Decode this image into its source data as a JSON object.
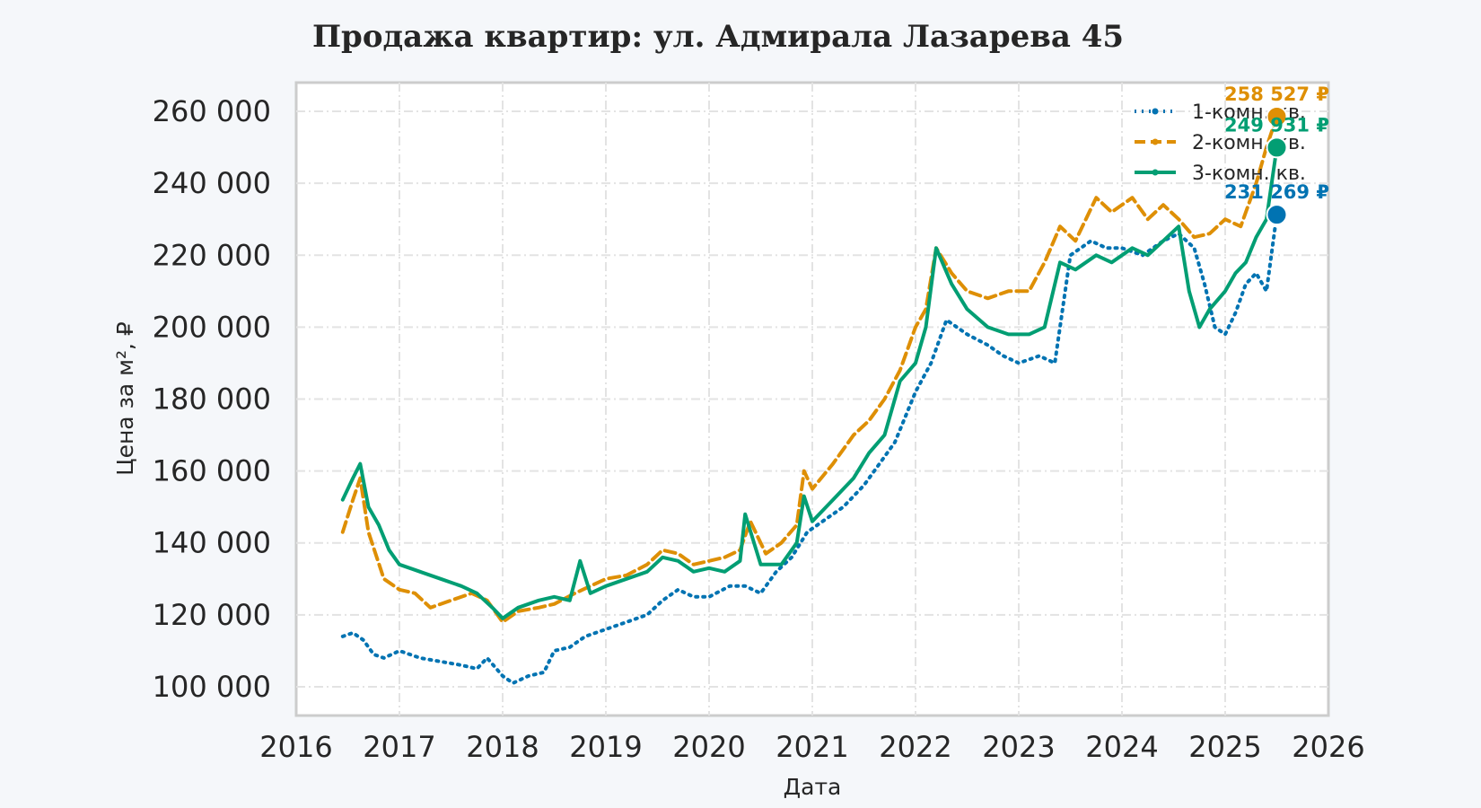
{
  "chart_data": {
    "type": "line",
    "title": "Продажа квартир: ул. Адмирала Лазарева 45",
    "xlabel": "Дата",
    "ylabel": "Цена за м², ₽",
    "xlim": [
      2016.0,
      2026.0
    ],
    "ylim": [
      92000,
      268000
    ],
    "x_ticks": [
      "2016",
      "2017",
      "2018",
      "2019",
      "2020",
      "2021",
      "2022",
      "2023",
      "2024",
      "2025",
      "2026"
    ],
    "y_ticks": [
      "100 000",
      "120 000",
      "140 000",
      "160 000",
      "180 000",
      "200 000",
      "220 000",
      "240 000",
      "260 000"
    ],
    "grid": true,
    "legend_position": "top-right",
    "series": [
      {
        "name": "1-комн. кв.",
        "color": "#0173b2",
        "dash": "2,6",
        "x": [
          2016.45,
          2016.55,
          2016.65,
          2016.75,
          2016.85,
          2017.0,
          2017.2,
          2017.4,
          2017.6,
          2017.75,
          2017.85,
          2018.0,
          2018.1,
          2018.25,
          2018.4,
          2018.5,
          2018.65,
          2018.8,
          2019.0,
          2019.2,
          2019.4,
          2019.55,
          2019.7,
          2019.85,
          2020.0,
          2020.2,
          2020.35,
          2020.5,
          2020.65,
          2020.8,
          2020.95,
          2021.1,
          2021.3,
          2021.5,
          2021.65,
          2021.8,
          2022.0,
          2022.15,
          2022.3,
          2022.5,
          2022.7,
          2022.85,
          2023.0,
          2023.2,
          2023.35,
          2023.5,
          2023.7,
          2023.85,
          2024.0,
          2024.2,
          2024.4,
          2024.55,
          2024.7,
          2024.8,
          2024.9,
          2025.0,
          2025.1,
          2025.2,
          2025.3,
          2025.4,
          2025.5
        ],
        "y": [
          114000,
          115000,
          113000,
          109000,
          108000,
          110000,
          108000,
          107000,
          106000,
          105000,
          108000,
          103000,
          101000,
          103000,
          104000,
          110000,
          111000,
          114000,
          116000,
          118000,
          120000,
          124000,
          127000,
          125000,
          125000,
          128000,
          128000,
          126000,
          132000,
          136000,
          143000,
          146000,
          150000,
          156000,
          162000,
          168000,
          182000,
          190000,
          202000,
          198000,
          195000,
          192000,
          190000,
          192000,
          190000,
          220000,
          224000,
          222000,
          222000,
          220000,
          224000,
          226000,
          222000,
          212000,
          200000,
          198000,
          204000,
          212000,
          215000,
          210000,
          231269
        ]
      },
      {
        "name": "2-комн. кв.",
        "color": "#de8f05",
        "dash": "12,6",
        "x": [
          2016.45,
          2016.55,
          2016.62,
          2016.7,
          2016.85,
          2017.0,
          2017.15,
          2017.3,
          2017.5,
          2017.7,
          2017.85,
          2018.0,
          2018.15,
          2018.35,
          2018.5,
          2018.7,
          2018.85,
          2019.0,
          2019.2,
          2019.4,
          2019.55,
          2019.7,
          2019.85,
          2020.0,
          2020.15,
          2020.3,
          2020.4,
          2020.55,
          2020.7,
          2020.85,
          2020.92,
          2021.0,
          2021.2,
          2021.4,
          2021.55,
          2021.7,
          2021.85,
          2022.0,
          2022.1,
          2022.2,
          2022.35,
          2022.5,
          2022.7,
          2022.9,
          2023.1,
          2023.25,
          2023.4,
          2023.55,
          2023.75,
          2023.9,
          2024.1,
          2024.25,
          2024.4,
          2024.55,
          2024.7,
          2024.85,
          2025.0,
          2025.15,
          2025.3,
          2025.4,
          2025.5
        ],
        "y": [
          143000,
          152000,
          158000,
          143000,
          130000,
          127000,
          126000,
          122000,
          124000,
          126000,
          124000,
          118000,
          121000,
          122000,
          123000,
          126000,
          128000,
          130000,
          131000,
          134000,
          138000,
          137000,
          134000,
          135000,
          136000,
          138000,
          146000,
          137000,
          140000,
          145000,
          160000,
          155000,
          162000,
          170000,
          174000,
          180000,
          188000,
          200000,
          205000,
          222000,
          215000,
          210000,
          208000,
          210000,
          210000,
          218000,
          228000,
          224000,
          236000,
          232000,
          236000,
          230000,
          234000,
          230000,
          225000,
          226000,
          230000,
          228000,
          240000,
          250000,
          258527
        ]
      },
      {
        "name": "3-комн. кв.",
        "color": "#029e73",
        "dash": "",
        "x": [
          2016.45,
          2016.55,
          2016.62,
          2016.7,
          2016.8,
          2016.9,
          2017.0,
          2017.2,
          2017.4,
          2017.6,
          2017.75,
          2017.9,
          2018.0,
          2018.15,
          2018.35,
          2018.5,
          2018.65,
          2018.75,
          2018.85,
          2019.0,
          2019.2,
          2019.4,
          2019.55,
          2019.7,
          2019.85,
          2020.0,
          2020.15,
          2020.3,
          2020.35,
          2020.5,
          2020.7,
          2020.85,
          2020.92,
          2021.0,
          2021.2,
          2021.4,
          2021.55,
          2021.7,
          2021.85,
          2022.0,
          2022.1,
          2022.2,
          2022.35,
          2022.5,
          2022.7,
          2022.9,
          2023.1,
          2023.25,
          2023.4,
          2023.55,
          2023.75,
          2023.9,
          2024.1,
          2024.25,
          2024.4,
          2024.55,
          2024.65,
          2024.75,
          2024.85,
          2025.0,
          2025.1,
          2025.2,
          2025.3,
          2025.4,
          2025.5
        ],
        "y": [
          152000,
          158000,
          162000,
          150000,
          145000,
          138000,
          134000,
          132000,
          130000,
          128000,
          126000,
          122000,
          119000,
          122000,
          124000,
          125000,
          124000,
          135000,
          126000,
          128000,
          130000,
          132000,
          136000,
          135000,
          132000,
          133000,
          132000,
          135000,
          148000,
          134000,
          134000,
          140000,
          153000,
          146000,
          152000,
          158000,
          165000,
          170000,
          185000,
          190000,
          200000,
          222000,
          212000,
          205000,
          200000,
          198000,
          198000,
          200000,
          218000,
          216000,
          220000,
          218000,
          222000,
          220000,
          224000,
          228000,
          210000,
          200000,
          205000,
          210000,
          215000,
          218000,
          225000,
          230000,
          249931
        ]
      }
    ],
    "end_points": [
      {
        "series": "1-комн. кв.",
        "label": "231 269 ₽",
        "color": "#0173b2",
        "y": 231269
      },
      {
        "series": "2-комн. кв.",
        "label": "258 527 ₽",
        "color": "#de8f05",
        "y": 258527
      },
      {
        "series": "3-комн. кв.",
        "label": "249 931 ₽",
        "color": "#029e73",
        "y": 249931
      }
    ]
  }
}
